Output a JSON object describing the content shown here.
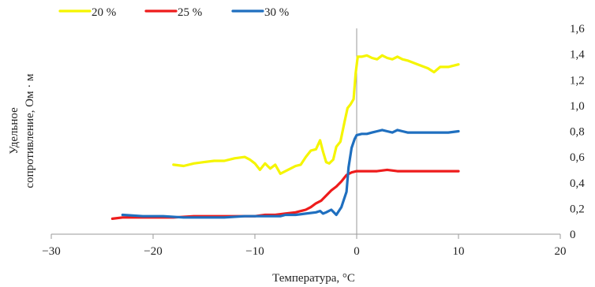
{
  "chart_data": {
    "type": "line",
    "title": "",
    "xlabel": "Температура, °C",
    "ylabel_lines": [
      "Удельное",
      "сопротивление, Ом · м"
    ],
    "xlim": [
      -30,
      20
    ],
    "ylim": [
      0,
      1.6
    ],
    "x_ticks": [
      -30,
      -20,
      -10,
      0,
      10,
      20
    ],
    "x_tick_labels": [
      "−30",
      "−20",
      "−10",
      "0",
      "10",
      "20"
    ],
    "y_ticks": [
      0,
      0.2,
      0.4,
      0.6,
      0.8,
      1.0,
      1.2,
      1.4,
      1.6
    ],
    "y_tick_labels": [
      "0",
      "0,2",
      "0,4",
      "0,6",
      "0,8",
      "1,0",
      "1,2",
      "1,4",
      "1,6"
    ],
    "y_axis_position": "right",
    "grid": false,
    "legend_position": "top-left",
    "series": [
      {
        "name": "20 %",
        "color": "#f5f500",
        "points": [
          [
            -18,
            0.54
          ],
          [
            -17,
            0.53
          ],
          [
            -16,
            0.55
          ],
          [
            -15,
            0.56
          ],
          [
            -14,
            0.57
          ],
          [
            -13,
            0.57
          ],
          [
            -12,
            0.59
          ],
          [
            -11,
            0.6
          ],
          [
            -10.5,
            0.58
          ],
          [
            -10,
            0.55
          ],
          [
            -9.5,
            0.5
          ],
          [
            -9,
            0.55
          ],
          [
            -8.5,
            0.51
          ],
          [
            -8,
            0.54
          ],
          [
            -7.5,
            0.47
          ],
          [
            -7,
            0.49
          ],
          [
            -6.5,
            0.51
          ],
          [
            -6,
            0.53
          ],
          [
            -5.5,
            0.54
          ],
          [
            -5,
            0.6
          ],
          [
            -4.5,
            0.65
          ],
          [
            -4,
            0.66
          ],
          [
            -3.6,
            0.73
          ],
          [
            -3.3,
            0.64
          ],
          [
            -3,
            0.56
          ],
          [
            -2.7,
            0.55
          ],
          [
            -2.3,
            0.58
          ],
          [
            -2,
            0.68
          ],
          [
            -1.6,
            0.72
          ],
          [
            -1.2,
            0.87
          ],
          [
            -0.9,
            0.98
          ],
          [
            -0.6,
            1.01
          ],
          [
            -0.3,
            1.05
          ],
          [
            -0.1,
            1.25
          ],
          [
            0.1,
            1.38
          ],
          [
            0.5,
            1.38
          ],
          [
            1,
            1.39
          ],
          [
            1.5,
            1.37
          ],
          [
            2,
            1.36
          ],
          [
            2.5,
            1.39
          ],
          [
            3,
            1.37
          ],
          [
            3.5,
            1.36
          ],
          [
            4,
            1.38
          ],
          [
            4.5,
            1.36
          ],
          [
            5,
            1.35
          ],
          [
            6,
            1.32
          ],
          [
            7,
            1.29
          ],
          [
            7.6,
            1.26
          ],
          [
            8.2,
            1.3
          ],
          [
            9,
            1.3
          ],
          [
            10,
            1.32
          ]
        ]
      },
      {
        "name": "25 %",
        "color": "#ee1c1c",
        "points": [
          [
            -24,
            0.12
          ],
          [
            -23,
            0.13
          ],
          [
            -22,
            0.13
          ],
          [
            -20,
            0.13
          ],
          [
            -18,
            0.13
          ],
          [
            -16,
            0.14
          ],
          [
            -14,
            0.14
          ],
          [
            -12,
            0.14
          ],
          [
            -10,
            0.14
          ],
          [
            -9,
            0.15
          ],
          [
            -8,
            0.15
          ],
          [
            -7,
            0.16
          ],
          [
            -6,
            0.17
          ],
          [
            -5,
            0.19
          ],
          [
            -4.5,
            0.21
          ],
          [
            -4,
            0.24
          ],
          [
            -3.5,
            0.26
          ],
          [
            -3,
            0.3
          ],
          [
            -2.5,
            0.34
          ],
          [
            -2,
            0.37
          ],
          [
            -1.5,
            0.41
          ],
          [
            -1,
            0.46
          ],
          [
            -0.5,
            0.48
          ],
          [
            0,
            0.49
          ],
          [
            1,
            0.49
          ],
          [
            2,
            0.49
          ],
          [
            3,
            0.5
          ],
          [
            4,
            0.49
          ],
          [
            5,
            0.49
          ],
          [
            6,
            0.49
          ],
          [
            7,
            0.49
          ],
          [
            8,
            0.49
          ],
          [
            9,
            0.49
          ],
          [
            10,
            0.49
          ]
        ]
      },
      {
        "name": "30 %",
        "color": "#1f6fbf",
        "points": [
          [
            -23,
            0.15
          ],
          [
            -21,
            0.14
          ],
          [
            -19,
            0.14
          ],
          [
            -17,
            0.13
          ],
          [
            -15,
            0.13
          ],
          [
            -13,
            0.13
          ],
          [
            -11,
            0.14
          ],
          [
            -9,
            0.14
          ],
          [
            -7.5,
            0.14
          ],
          [
            -7,
            0.15
          ],
          [
            -6,
            0.15
          ],
          [
            -5,
            0.16
          ],
          [
            -4,
            0.17
          ],
          [
            -3.6,
            0.18
          ],
          [
            -3.3,
            0.16
          ],
          [
            -3,
            0.17
          ],
          [
            -2.5,
            0.19
          ],
          [
            -2,
            0.15
          ],
          [
            -1.5,
            0.21
          ],
          [
            -1,
            0.33
          ],
          [
            -0.8,
            0.52
          ],
          [
            -0.5,
            0.67
          ],
          [
            -0.2,
            0.74
          ],
          [
            0,
            0.77
          ],
          [
            0.5,
            0.78
          ],
          [
            1,
            0.78
          ],
          [
            1.5,
            0.79
          ],
          [
            2,
            0.8
          ],
          [
            2.5,
            0.81
          ],
          [
            3,
            0.8
          ],
          [
            3.5,
            0.79
          ],
          [
            4,
            0.81
          ],
          [
            4.5,
            0.8
          ],
          [
            5,
            0.79
          ],
          [
            6,
            0.79
          ],
          [
            7,
            0.79
          ],
          [
            8,
            0.79
          ],
          [
            9,
            0.79
          ],
          [
            10,
            0.8
          ]
        ]
      }
    ]
  }
}
